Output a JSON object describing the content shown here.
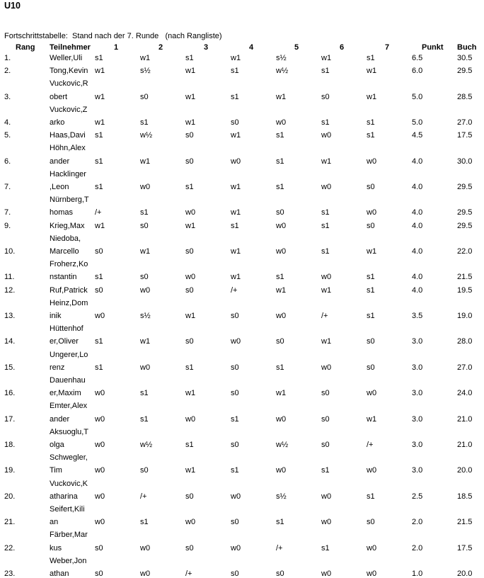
{
  "title": "U10",
  "subtitle": "Fortschrittstabelle:  Stand nach der 7. Runde   (nach Rangliste)",
  "headers": {
    "rang": "Rang",
    "teilnehmer": "Teilnehmer",
    "r1": "1",
    "r2": "2",
    "r3": "3",
    "r4": "4",
    "r5": "5",
    "r6": "6",
    "r7": "7",
    "punkt": "Punkt",
    "buch": "Buch"
  },
  "rows": [
    {
      "rang": "1.",
      "name": [
        "Weller,Uli"
      ],
      "res": [
        "s1",
        "w1",
        "s1",
        "w1",
        "s½",
        "w1",
        "s1"
      ],
      "punkt": "6.5",
      "buch": "30.5"
    },
    {
      "rang": "2.",
      "name": [
        "Tong,Kevin"
      ],
      "res": [
        "w1",
        "s½",
        "w1",
        "s1",
        "w½",
        "s1",
        "w1"
      ],
      "punkt": "6.0",
      "buch": "29.5"
    },
    {
      "rang": "3.",
      "name": [
        "Vuckovic,R",
        "obert"
      ],
      "res": [
        "w1",
        "s0",
        "w1",
        "s1",
        "w1",
        "s0",
        "w1"
      ],
      "punkt": "5.0",
      "buch": "28.5"
    },
    {
      "rang": "4.",
      "name": [
        "Vuckovic,Z",
        "arko"
      ],
      "res": [
        "w1",
        "s1",
        "w1",
        "s0",
        "w0",
        "s1",
        "s1"
      ],
      "punkt": "5.0",
      "buch": "27.0"
    },
    {
      "rang": "5.",
      "name": [
        "Haas,Davi"
      ],
      "res": [
        "s1",
        "w½",
        "s0",
        "w1",
        "s1",
        "w0",
        "s1"
      ],
      "punkt": "4.5",
      "buch": "17.5"
    },
    {
      "rang": "6.",
      "name": [
        "Höhn,Alex",
        "ander"
      ],
      "res": [
        "s1",
        "w1",
        "s0",
        "w0",
        "s1",
        "w1",
        "w0"
      ],
      "punkt": "4.0",
      "buch": "30.0"
    },
    {
      "rang": "7.",
      "name": [
        "Hacklinger",
        ",Leon"
      ],
      "res": [
        "s1",
        "w0",
        "s1",
        "w1",
        "s1",
        "w0",
        "s0"
      ],
      "punkt": "4.0",
      "buch": "29.5"
    },
    {
      "rang": "7.",
      "name": [
        "Nürnberg,T",
        "homas"
      ],
      "res": [
        "/+",
        "s1",
        "w0",
        "w1",
        "s0",
        "s1",
        "w0"
      ],
      "punkt": "4.0",
      "buch": "29.5"
    },
    {
      "rang": "9.",
      "name": [
        "Krieg,Max"
      ],
      "res": [
        "w1",
        "s0",
        "w1",
        "s1",
        "w0",
        "s1",
        "s0"
      ],
      "punkt": "4.0",
      "buch": "29.5"
    },
    {
      "rang": "10.",
      "name": [
        "Niedoba,",
        "Marcello"
      ],
      "res": [
        "s0",
        "w1",
        "s0",
        "w1",
        "w0",
        "s1",
        "w1"
      ],
      "punkt": "4.0",
      "buch": "22.0"
    },
    {
      "rang": "11.",
      "name": [
        "Froherz,Ko",
        "nstantin"
      ],
      "res": [
        "s1",
        "s0",
        "w0",
        "w1",
        "s1",
        "w0",
        "s1"
      ],
      "punkt": "4.0",
      "buch": "21.5"
    },
    {
      "rang": "12.",
      "name": [
        "Ruf,Patrick"
      ],
      "res": [
        "s0",
        "w0",
        "s0",
        "/+",
        "w1",
        "w1",
        "s1"
      ],
      "punkt": "4.0",
      "buch": "19.5"
    },
    {
      "rang": "13.",
      "name": [
        "Heinz,Dom",
        "inik"
      ],
      "res": [
        "w0",
        "s½",
        "w1",
        "s0",
        "w0",
        "/+",
        "s1"
      ],
      "punkt": "3.5",
      "buch": "19.0"
    },
    {
      "rang": "14.",
      "name": [
        "Hüttenhof",
        "er,Oliver"
      ],
      "res": [
        "s1",
        "w1",
        "s0",
        "w0",
        "s0",
        "w1",
        "s0"
      ],
      "punkt": "3.0",
      "buch": "28.0"
    },
    {
      "rang": "15.",
      "name": [
        "Ungerer,Lo",
        "renz"
      ],
      "res": [
        "s1",
        "w0",
        "s1",
        "s0",
        "s1",
        "w0",
        "s0"
      ],
      "punkt": "3.0",
      "buch": "27.0"
    },
    {
      "rang": "16.",
      "name": [
        "Dauenhau",
        "er,Maxim"
      ],
      "res": [
        "w0",
        "s1",
        "w1",
        "s0",
        "w1",
        "s0",
        "w0"
      ],
      "punkt": "3.0",
      "buch": "24.0"
    },
    {
      "rang": "17.",
      "name": [
        "Emter,Alex",
        "ander"
      ],
      "res": [
        "w0",
        "s1",
        "w0",
        "s1",
        "w0",
        "s0",
        "w1"
      ],
      "punkt": "3.0",
      "buch": "21.0"
    },
    {
      "rang": "18.",
      "name": [
        "Aksuoglu,T",
        "olga"
      ],
      "res": [
        "w0",
        "w½",
        "s1",
        "s0",
        "w½",
        "s0",
        "/+"
      ],
      "punkt": "3.0",
      "buch": "21.0"
    },
    {
      "rang": "19.",
      "name": [
        "Schwegler,",
        "Tim"
      ],
      "res": [
        "w0",
        "s0",
        "w1",
        "s1",
        "w0",
        "s1",
        "w0"
      ],
      "punkt": "3.0",
      "buch": "20.0"
    },
    {
      "rang": "20.",
      "name": [
        "Vuckovic,K",
        "atharina"
      ],
      "res": [
        "w0",
        "/+",
        "s0",
        "w0",
        "s½",
        "w0",
        "s1"
      ],
      "punkt": "2.5",
      "buch": "18.5"
    },
    {
      "rang": "21.",
      "name": [
        "Seifert,Kili",
        "an"
      ],
      "res": [
        "w0",
        "s1",
        "w0",
        "s0",
        "s1",
        "w0",
        "s0"
      ],
      "punkt": "2.0",
      "buch": "21.5"
    },
    {
      "rang": "22.",
      "name": [
        "Färber,Mar",
        "kus"
      ],
      "res": [
        "s0",
        "w0",
        "s0",
        "w0",
        "/+",
        "s1",
        "w0"
      ],
      "punkt": "2.0",
      "buch": "17.5"
    },
    {
      "rang": "23.",
      "name": [
        "Weber,Jon",
        "athan"
      ],
      "res": [
        "s0",
        "w0",
        "/+",
        "s0",
        "s0",
        "w0",
        "w0"
      ],
      "punkt": "1.0",
      "buch": "20.0"
    }
  ]
}
